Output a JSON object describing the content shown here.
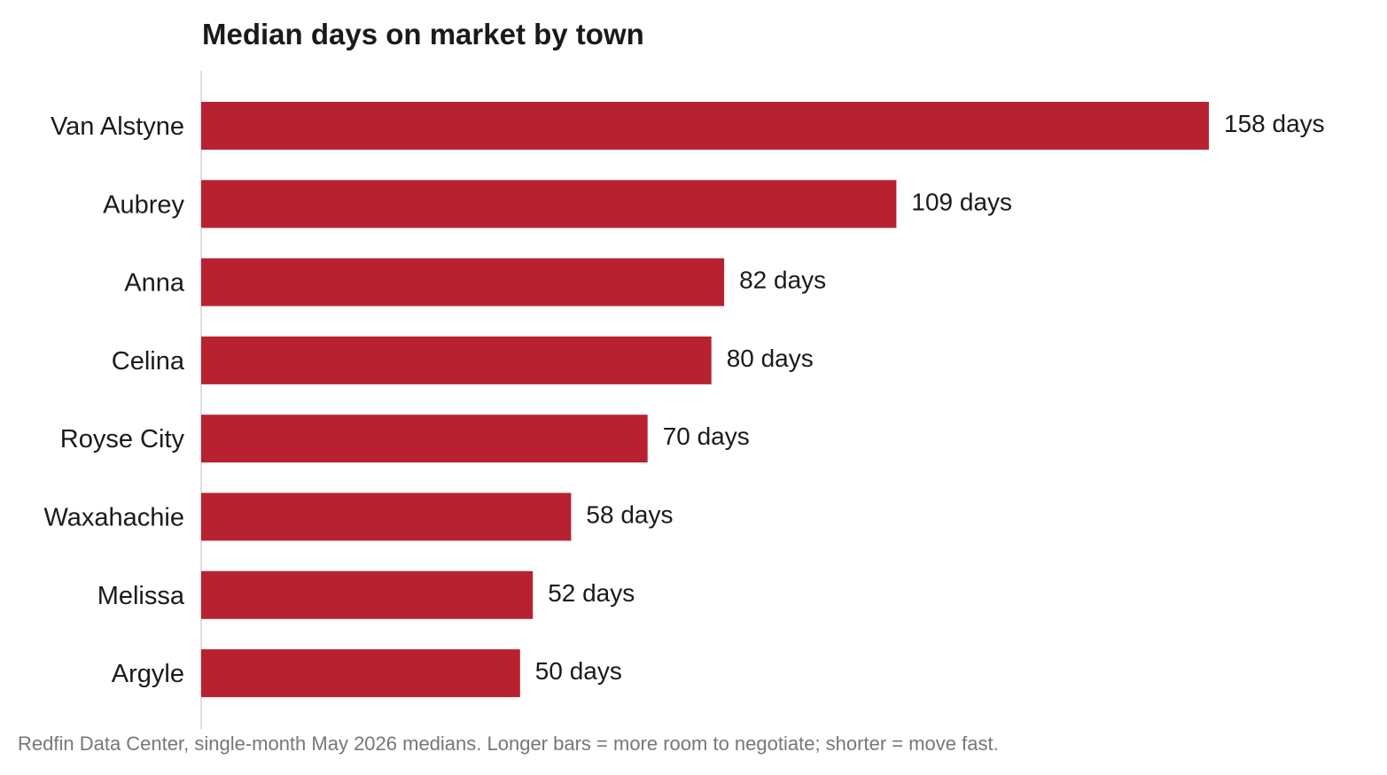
{
  "chart_data": {
    "type": "bar",
    "orientation": "horizontal",
    "title": "Median days on market by town",
    "source_note": "Redfin Data Center, single-month May 2026 medians. Longer bars = more room to negotiate; shorter = move fast.",
    "categories": [
      "Van Alstyne",
      "Aubrey",
      "Anna",
      "Celina",
      "Royse City",
      "Waxahachie",
      "Melissa",
      "Argyle"
    ],
    "values": [
      158,
      109,
      82,
      80,
      70,
      58,
      52,
      50
    ],
    "value_labels": [
      "158 days",
      "109 days",
      "82 days",
      "80 days",
      "70 days",
      "58 days",
      "52 days",
      "50 days"
    ],
    "xlabel": "",
    "ylabel": "",
    "xlim": [
      0,
      158
    ],
    "grid": false,
    "legend": "none",
    "colors": {
      "bar": "#b82230",
      "axis": "#d4d4d4"
    }
  }
}
